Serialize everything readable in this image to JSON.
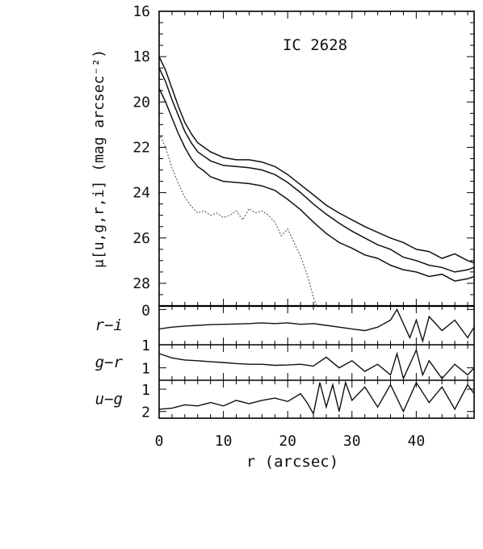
{
  "chart_data": {
    "type": "line",
    "title": "IC 2628",
    "xlabel": "r (arcsec)",
    "xlim": [
      0,
      49
    ],
    "xticks": [
      "0",
      "10",
      "20",
      "30",
      "40"
    ],
    "main_panel": {
      "ylabel": "μ[u,g,r,i] (mag arcsec⁻²)",
      "ylim": [
        16,
        29
      ],
      "inverted": true,
      "yticks": [
        "16",
        "18",
        "20",
        "22",
        "24",
        "26",
        "28"
      ],
      "series": [
        {
          "line": "solid",
          "x": [
            0,
            1,
            2,
            3,
            4,
            5,
            6,
            7,
            8,
            10,
            12,
            14,
            16,
            18,
            20,
            22,
            24,
            26,
            28,
            30,
            32,
            34,
            36,
            38,
            40,
            42,
            44,
            46,
            48,
            49
          ],
          "y": [
            18.0,
            18.6,
            19.4,
            20.2,
            20.9,
            21.4,
            21.8,
            22.0,
            22.2,
            22.45,
            22.55,
            22.55,
            22.65,
            22.85,
            23.2,
            23.65,
            24.1,
            24.55,
            24.9,
            25.2,
            25.5,
            25.75,
            26.0,
            26.2,
            26.5,
            26.6,
            26.9,
            26.7,
            27.0,
            27.1
          ]
        },
        {
          "line": "solid",
          "x": [
            0,
            1,
            2,
            3,
            4,
            5,
            6,
            7,
            8,
            10,
            12,
            14,
            16,
            18,
            20,
            22,
            24,
            26,
            28,
            30,
            32,
            34,
            36,
            38,
            40,
            42,
            44,
            46,
            48,
            49
          ],
          "y": [
            18.5,
            19.1,
            19.9,
            20.6,
            21.3,
            21.8,
            22.2,
            22.4,
            22.6,
            22.8,
            22.85,
            22.9,
            23.0,
            23.2,
            23.55,
            24.0,
            24.5,
            24.95,
            25.35,
            25.7,
            26.0,
            26.3,
            26.5,
            26.85,
            27.0,
            27.2,
            27.3,
            27.5,
            27.4,
            27.3
          ]
        },
        {
          "line": "solid",
          "x": [
            0,
            1,
            2,
            3,
            4,
            5,
            6,
            7,
            8,
            10,
            12,
            14,
            16,
            18,
            20,
            22,
            24,
            26,
            28,
            30,
            32,
            34,
            36,
            38,
            40,
            42,
            44,
            46,
            48,
            49
          ],
          "y": [
            19.4,
            20.0,
            20.7,
            21.4,
            22.0,
            22.5,
            22.85,
            23.05,
            23.3,
            23.5,
            23.55,
            23.6,
            23.7,
            23.9,
            24.3,
            24.75,
            25.3,
            25.8,
            26.2,
            26.45,
            26.75,
            26.9,
            27.2,
            27.4,
            27.5,
            27.7,
            27.6,
            27.9,
            27.8,
            27.7
          ]
        },
        {
          "line": "dotted",
          "x": [
            0,
            1,
            2,
            3,
            4,
            5,
            6,
            7,
            8,
            9,
            10,
            11,
            12,
            13,
            14,
            15,
            16,
            17,
            18,
            19,
            20,
            21,
            22,
            23,
            24,
            24.5
          ],
          "y": [
            21.4,
            22.0,
            22.9,
            23.6,
            24.2,
            24.6,
            24.9,
            24.8,
            25.0,
            24.9,
            25.1,
            25.0,
            24.8,
            25.2,
            24.7,
            24.9,
            24.8,
            25.0,
            25.3,
            25.9,
            25.6,
            26.2,
            26.8,
            27.6,
            28.6,
            29.0
          ]
        }
      ]
    },
    "color_panels": [
      {
        "label": "r−i",
        "ylim": [
          -0.1,
          1.0
        ],
        "inverted": true,
        "yticks": [
          "1",
          "0"
        ],
        "x": [
          0,
          2,
          4,
          6,
          8,
          10,
          12,
          14,
          16,
          18,
          20,
          22,
          24,
          26,
          28,
          30,
          32,
          34,
          36,
          37,
          38,
          39,
          40,
          41,
          42,
          44,
          46,
          48,
          49
        ],
        "y": [
          0.55,
          0.5,
          0.47,
          0.45,
          0.43,
          0.42,
          0.41,
          0.4,
          0.38,
          0.4,
          0.38,
          0.42,
          0.4,
          0.45,
          0.5,
          0.55,
          0.6,
          0.5,
          0.3,
          0.0,
          0.4,
          0.8,
          0.3,
          0.9,
          0.2,
          0.6,
          0.3,
          0.8,
          0.5
        ]
      },
      {
        "label": "g−r",
        "ylim": [
          0.35,
          1.35
        ],
        "inverted": true,
        "yticks": [
          "1"
        ],
        "x": [
          0,
          2,
          4,
          6,
          8,
          10,
          12,
          14,
          16,
          18,
          20,
          22,
          24,
          26,
          28,
          30,
          32,
          34,
          36,
          37,
          38,
          39,
          40,
          41,
          42,
          44,
          46,
          48,
          49
        ],
        "y": [
          0.6,
          0.72,
          0.78,
          0.8,
          0.83,
          0.85,
          0.88,
          0.9,
          0.9,
          0.93,
          0.92,
          0.9,
          0.95,
          0.7,
          1.0,
          0.8,
          1.1,
          0.9,
          1.2,
          0.6,
          1.3,
          0.9,
          0.5,
          1.2,
          0.8,
          1.3,
          0.9,
          1.2,
          1.0
        ]
      },
      {
        "label": "u−g",
        "ylim": [
          0.6,
          2.3
        ],
        "inverted": true,
        "yticks": [
          "2",
          "1"
        ],
        "x": [
          0,
          2,
          4,
          6,
          8,
          10,
          12,
          14,
          16,
          18,
          20,
          22,
          23,
          24,
          25,
          26,
          27,
          28,
          29,
          30,
          32,
          34,
          36,
          38,
          40,
          42,
          44,
          46,
          48,
          49
        ],
        "y": [
          1.9,
          1.85,
          1.7,
          1.75,
          1.6,
          1.75,
          1.5,
          1.65,
          1.5,
          1.4,
          1.55,
          1.2,
          1.6,
          2.1,
          0.7,
          1.8,
          0.8,
          2.0,
          0.7,
          1.5,
          0.9,
          1.8,
          0.8,
          2.0,
          0.7,
          1.6,
          0.9,
          1.9,
          0.8,
          1.2
        ]
      }
    ]
  }
}
